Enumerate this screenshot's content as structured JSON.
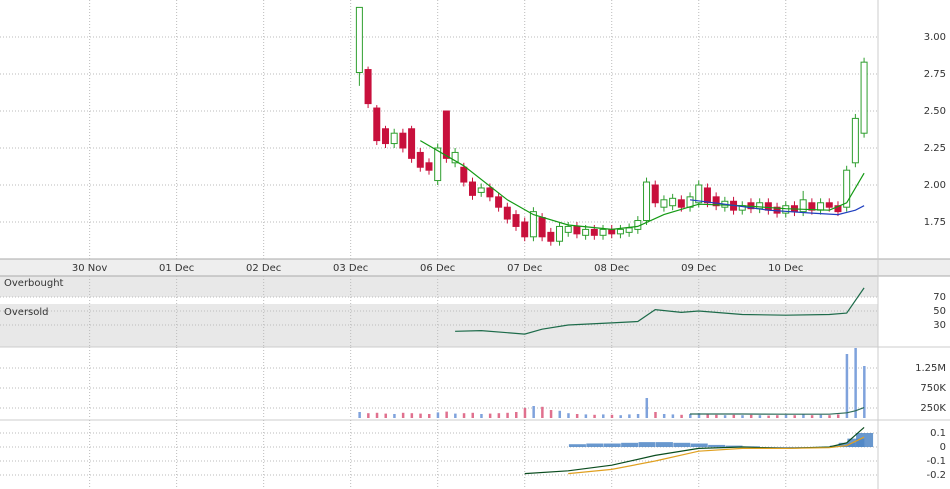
{
  "chart_data": [
    {
      "type": "candlestick",
      "xlim": [
        -1.03,
        9.06
      ],
      "xticks": [
        {
          "value": 0,
          "label": "30 Nov"
        },
        {
          "value": 1,
          "label": "01 Dec"
        },
        {
          "value": 2,
          "label": "02 Dec"
        },
        {
          "value": 3,
          "label": "03 Dec"
        },
        {
          "value": 4,
          "label": "06 Dec"
        },
        {
          "value": 5,
          "label": "07 Dec"
        },
        {
          "value": 6,
          "label": "08 Dec"
        },
        {
          "value": 7,
          "label": "09 Dec"
        },
        {
          "value": 8,
          "label": "10 Dec"
        }
      ],
      "ylim": [
        1.5,
        3.25
      ],
      "yticks": [
        {
          "value": 3,
          "label": "3.00"
        },
        {
          "value": 2.75,
          "label": "2.75"
        },
        {
          "value": 2.5,
          "label": "2.50"
        },
        {
          "value": 2.25,
          "label": "2.25"
        },
        {
          "value": 2,
          "label": "2.00"
        },
        {
          "value": 1.75,
          "label": "1.75"
        }
      ],
      "up_color": "#2e9e2e",
      "down_color": "#c8103c",
      "x": [
        3.1,
        3.2,
        3.3,
        3.4,
        3.5,
        3.6,
        3.7,
        3.8,
        3.9,
        4.0,
        4.1,
        4.2,
        4.3,
        4.4,
        4.5,
        4.6,
        4.7,
        4.8,
        4.9,
        5.0,
        5.1,
        5.2,
        5.3,
        5.4,
        5.5,
        5.6,
        5.7,
        5.8,
        5.9,
        6.0,
        6.1,
        6.2,
        6.3,
        6.4,
        6.5,
        6.6,
        6.7,
        6.8,
        6.9,
        7.0,
        7.1,
        7.2,
        7.3,
        7.4,
        7.5,
        7.6,
        7.7,
        7.8,
        7.9,
        8.0,
        8.1,
        8.2,
        8.3,
        8.4,
        8.5,
        8.6,
        8.7,
        8.8,
        8.9
      ],
      "open": [
        2.76,
        2.78,
        2.52,
        2.38,
        2.28,
        2.35,
        2.38,
        2.22,
        2.15,
        2.03,
        2.5,
        2.15,
        2.12,
        2.02,
        1.95,
        1.98,
        1.92,
        1.85,
        1.8,
        1.75,
        1.65,
        1.78,
        1.68,
        1.62,
        1.68,
        1.72,
        1.66,
        1.7,
        1.66,
        1.7,
        1.67,
        1.68,
        1.7,
        1.76,
        2.0,
        1.85,
        1.86,
        1.9,
        1.85,
        1.88,
        1.98,
        1.92,
        1.85,
        1.89,
        1.83,
        1.88,
        1.84,
        1.88,
        1.85,
        1.81,
        1.86,
        1.82,
        1.88,
        1.83,
        1.88,
        1.86,
        1.85,
        2.15,
        2.35
      ],
      "high": [
        3.2,
        2.8,
        2.54,
        2.4,
        2.38,
        2.38,
        2.4,
        2.25,
        2.18,
        2.28,
        2.5,
        2.25,
        2.15,
        2.05,
        2.01,
        2.01,
        1.95,
        1.88,
        1.83,
        1.78,
        1.85,
        1.81,
        1.71,
        1.75,
        1.75,
        1.75,
        1.73,
        1.73,
        1.73,
        1.73,
        1.73,
        1.74,
        1.79,
        2.05,
        2.03,
        1.93,
        1.94,
        1.93,
        1.95,
        2.03,
        2.01,
        1.95,
        1.92,
        1.92,
        1.89,
        1.91,
        1.91,
        1.91,
        1.88,
        1.89,
        1.89,
        1.96,
        1.91,
        1.91,
        1.91,
        1.89,
        2.13,
        2.48,
        2.86
      ],
      "low": [
        2.67,
        2.52,
        2.27,
        2.25,
        2.25,
        2.22,
        2.15,
        2.09,
        2.07,
        2.0,
        2.15,
        2.12,
        1.99,
        1.9,
        1.92,
        1.89,
        1.82,
        1.74,
        1.69,
        1.62,
        1.62,
        1.62,
        1.59,
        1.59,
        1.65,
        1.64,
        1.63,
        1.63,
        1.63,
        1.64,
        1.64,
        1.65,
        1.67,
        1.73,
        1.85,
        1.82,
        1.83,
        1.82,
        1.82,
        1.85,
        1.85,
        1.83,
        1.82,
        1.8,
        1.8,
        1.81,
        1.81,
        1.8,
        1.78,
        1.78,
        1.79,
        1.79,
        1.8,
        1.8,
        1.82,
        1.79,
        1.82,
        2.12,
        2.32
      ],
      "close": [
        3.2,
        2.55,
        2.3,
        2.28,
        2.35,
        2.25,
        2.18,
        2.12,
        2.1,
        2.25,
        2.18,
        2.22,
        2.02,
        1.93,
        1.98,
        1.92,
        1.85,
        1.77,
        1.72,
        1.65,
        1.82,
        1.65,
        1.62,
        1.72,
        1.72,
        1.67,
        1.7,
        1.66,
        1.7,
        1.67,
        1.7,
        1.71,
        1.76,
        2.02,
        1.88,
        1.9,
        1.91,
        1.85,
        1.92,
        2.0,
        1.88,
        1.86,
        1.89,
        1.83,
        1.86,
        1.84,
        1.88,
        1.83,
        1.81,
        1.86,
        1.82,
        1.9,
        1.83,
        1.88,
        1.85,
        1.82,
        2.1,
        2.45,
        2.83
      ],
      "series": [
        {
          "color": "#139a13",
          "x": [
            3.8,
            4.3,
            4.8,
            5.1,
            5.5,
            6.0,
            6.3,
            6.6,
            7.0,
            7.5,
            8.0,
            8.5,
            8.7,
            8.9
          ],
          "values": [
            2.3,
            2.13,
            1.9,
            1.8,
            1.73,
            1.7,
            1.72,
            1.8,
            1.87,
            1.86,
            1.84,
            1.83,
            1.88,
            2.08
          ]
        },
        {
          "color": "#1f3fbf",
          "x": [
            6.9,
            7.3,
            7.8,
            8.3,
            8.6,
            8.8,
            8.9
          ],
          "values": [
            1.9,
            1.87,
            1.83,
            1.81,
            1.8,
            1.83,
            1.86
          ]
        }
      ]
    },
    {
      "type": "line",
      "annotations": [
        "Overbought",
        "Oversold"
      ],
      "ylim": [
        0,
        100
      ],
      "yticks": [
        70,
        50,
        30
      ],
      "series": [
        {
          "color": "#1d6b4a",
          "x": [
            4.2,
            4.5,
            4.8,
            5.0,
            5.2,
            5.5,
            6.0,
            6.3,
            6.5,
            6.8,
            7.0,
            7.5,
            8.0,
            8.5,
            8.7,
            8.9
          ],
          "values": [
            21,
            22,
            19,
            17,
            24,
            30,
            33,
            35,
            52,
            48,
            50,
            45,
            44,
            45,
            47,
            83
          ]
        }
      ]
    },
    {
      "type": "bar",
      "ylim": [
        0,
        1775000
      ],
      "yticks": [
        {
          "value": 1250000,
          "label": "1.25M"
        },
        {
          "value": 750000,
          "label": "750K"
        },
        {
          "value": 250000,
          "label": "250K"
        }
      ],
      "up_color": "#7fa2dc",
      "down_color": "#e0708e",
      "x": [
        3.1,
        3.2,
        3.3,
        3.4,
        3.5,
        3.6,
        3.7,
        3.8,
        3.9,
        4.0,
        4.1,
        4.2,
        4.3,
        4.4,
        4.5,
        4.6,
        4.7,
        4.8,
        4.9,
        5.0,
        5.1,
        5.2,
        5.3,
        5.4,
        5.5,
        5.6,
        5.7,
        5.8,
        5.9,
        6.0,
        6.1,
        6.2,
        6.3,
        6.4,
        6.5,
        6.6,
        6.7,
        6.8,
        6.9,
        7.0,
        7.1,
        7.2,
        7.3,
        7.4,
        7.5,
        7.6,
        7.7,
        7.8,
        7.9,
        8.0,
        8.1,
        8.2,
        8.3,
        8.4,
        8.5,
        8.6,
        8.7,
        8.8,
        8.9
      ],
      "values": [
        150000,
        120000,
        130000,
        110000,
        100000,
        130000,
        120000,
        110000,
        100000,
        140000,
        160000,
        110000,
        120000,
        130000,
        100000,
        110000,
        120000,
        130000,
        150000,
        250000,
        300000,
        280000,
        200000,
        180000,
        120000,
        100000,
        90000,
        80000,
        90000,
        80000,
        70000,
        90000,
        100000,
        500000,
        150000,
        100000,
        90000,
        80000,
        100000,
        120000,
        90000,
        80000,
        70000,
        80000,
        70000,
        80000,
        70000,
        60000,
        70000,
        80000,
        70000,
        90000,
        70000,
        80000,
        70000,
        90000,
        1600000,
        1750000,
        1300000
      ],
      "series": [
        {
          "color": "#2e6b5a",
          "x": [
            6.9,
            7.5,
            8.0,
            8.5,
            8.7,
            8.8,
            8.9
          ],
          "values": [
            100000,
            100000,
            95000,
            95000,
            130000,
            180000,
            260000
          ]
        }
      ]
    },
    {
      "type": "line",
      "ylim": [
        -0.3,
        0.193
      ],
      "yticks": [
        0.1,
        0,
        -0.1,
        -0.2
      ],
      "series": [
        {
          "style": "bars",
          "color": "#4f86c6",
          "x": [
            5.6,
            5.8,
            6.0,
            6.2,
            6.4,
            6.6,
            6.8,
            7.0,
            7.2,
            7.4,
            7.6,
            7.8,
            8.0,
            8.2,
            8.4,
            8.6,
            8.7,
            8.8,
            8.9
          ],
          "values": [
            0.02,
            0.025,
            0.025,
            0.03,
            0.035,
            0.035,
            0.03,
            0.025,
            0.015,
            0.01,
            0.005,
            0.0,
            -0.005,
            -0.005,
            0.0,
            0.01,
            0.03,
            0.06,
            0.1
          ]
        },
        {
          "color": "#0b4d1f",
          "x": [
            5.0,
            5.5,
            6.0,
            6.5,
            7.0,
            7.5,
            8.0,
            8.5,
            8.7,
            8.9
          ],
          "values": [
            -0.19,
            -0.17,
            -0.13,
            -0.06,
            -0.01,
            0.0,
            -0.01,
            0.0,
            0.03,
            0.14
          ]
        },
        {
          "color": "#e0a020",
          "x": [
            5.0,
            5.5,
            6.0,
            6.5,
            7.0,
            7.5,
            8.0,
            8.5,
            8.7,
            8.9
          ],
          "values": [
            null,
            -0.19,
            -0.16,
            -0.1,
            -0.03,
            -0.01,
            -0.01,
            -0.005,
            0.01,
            0.07
          ]
        }
      ]
    }
  ]
}
